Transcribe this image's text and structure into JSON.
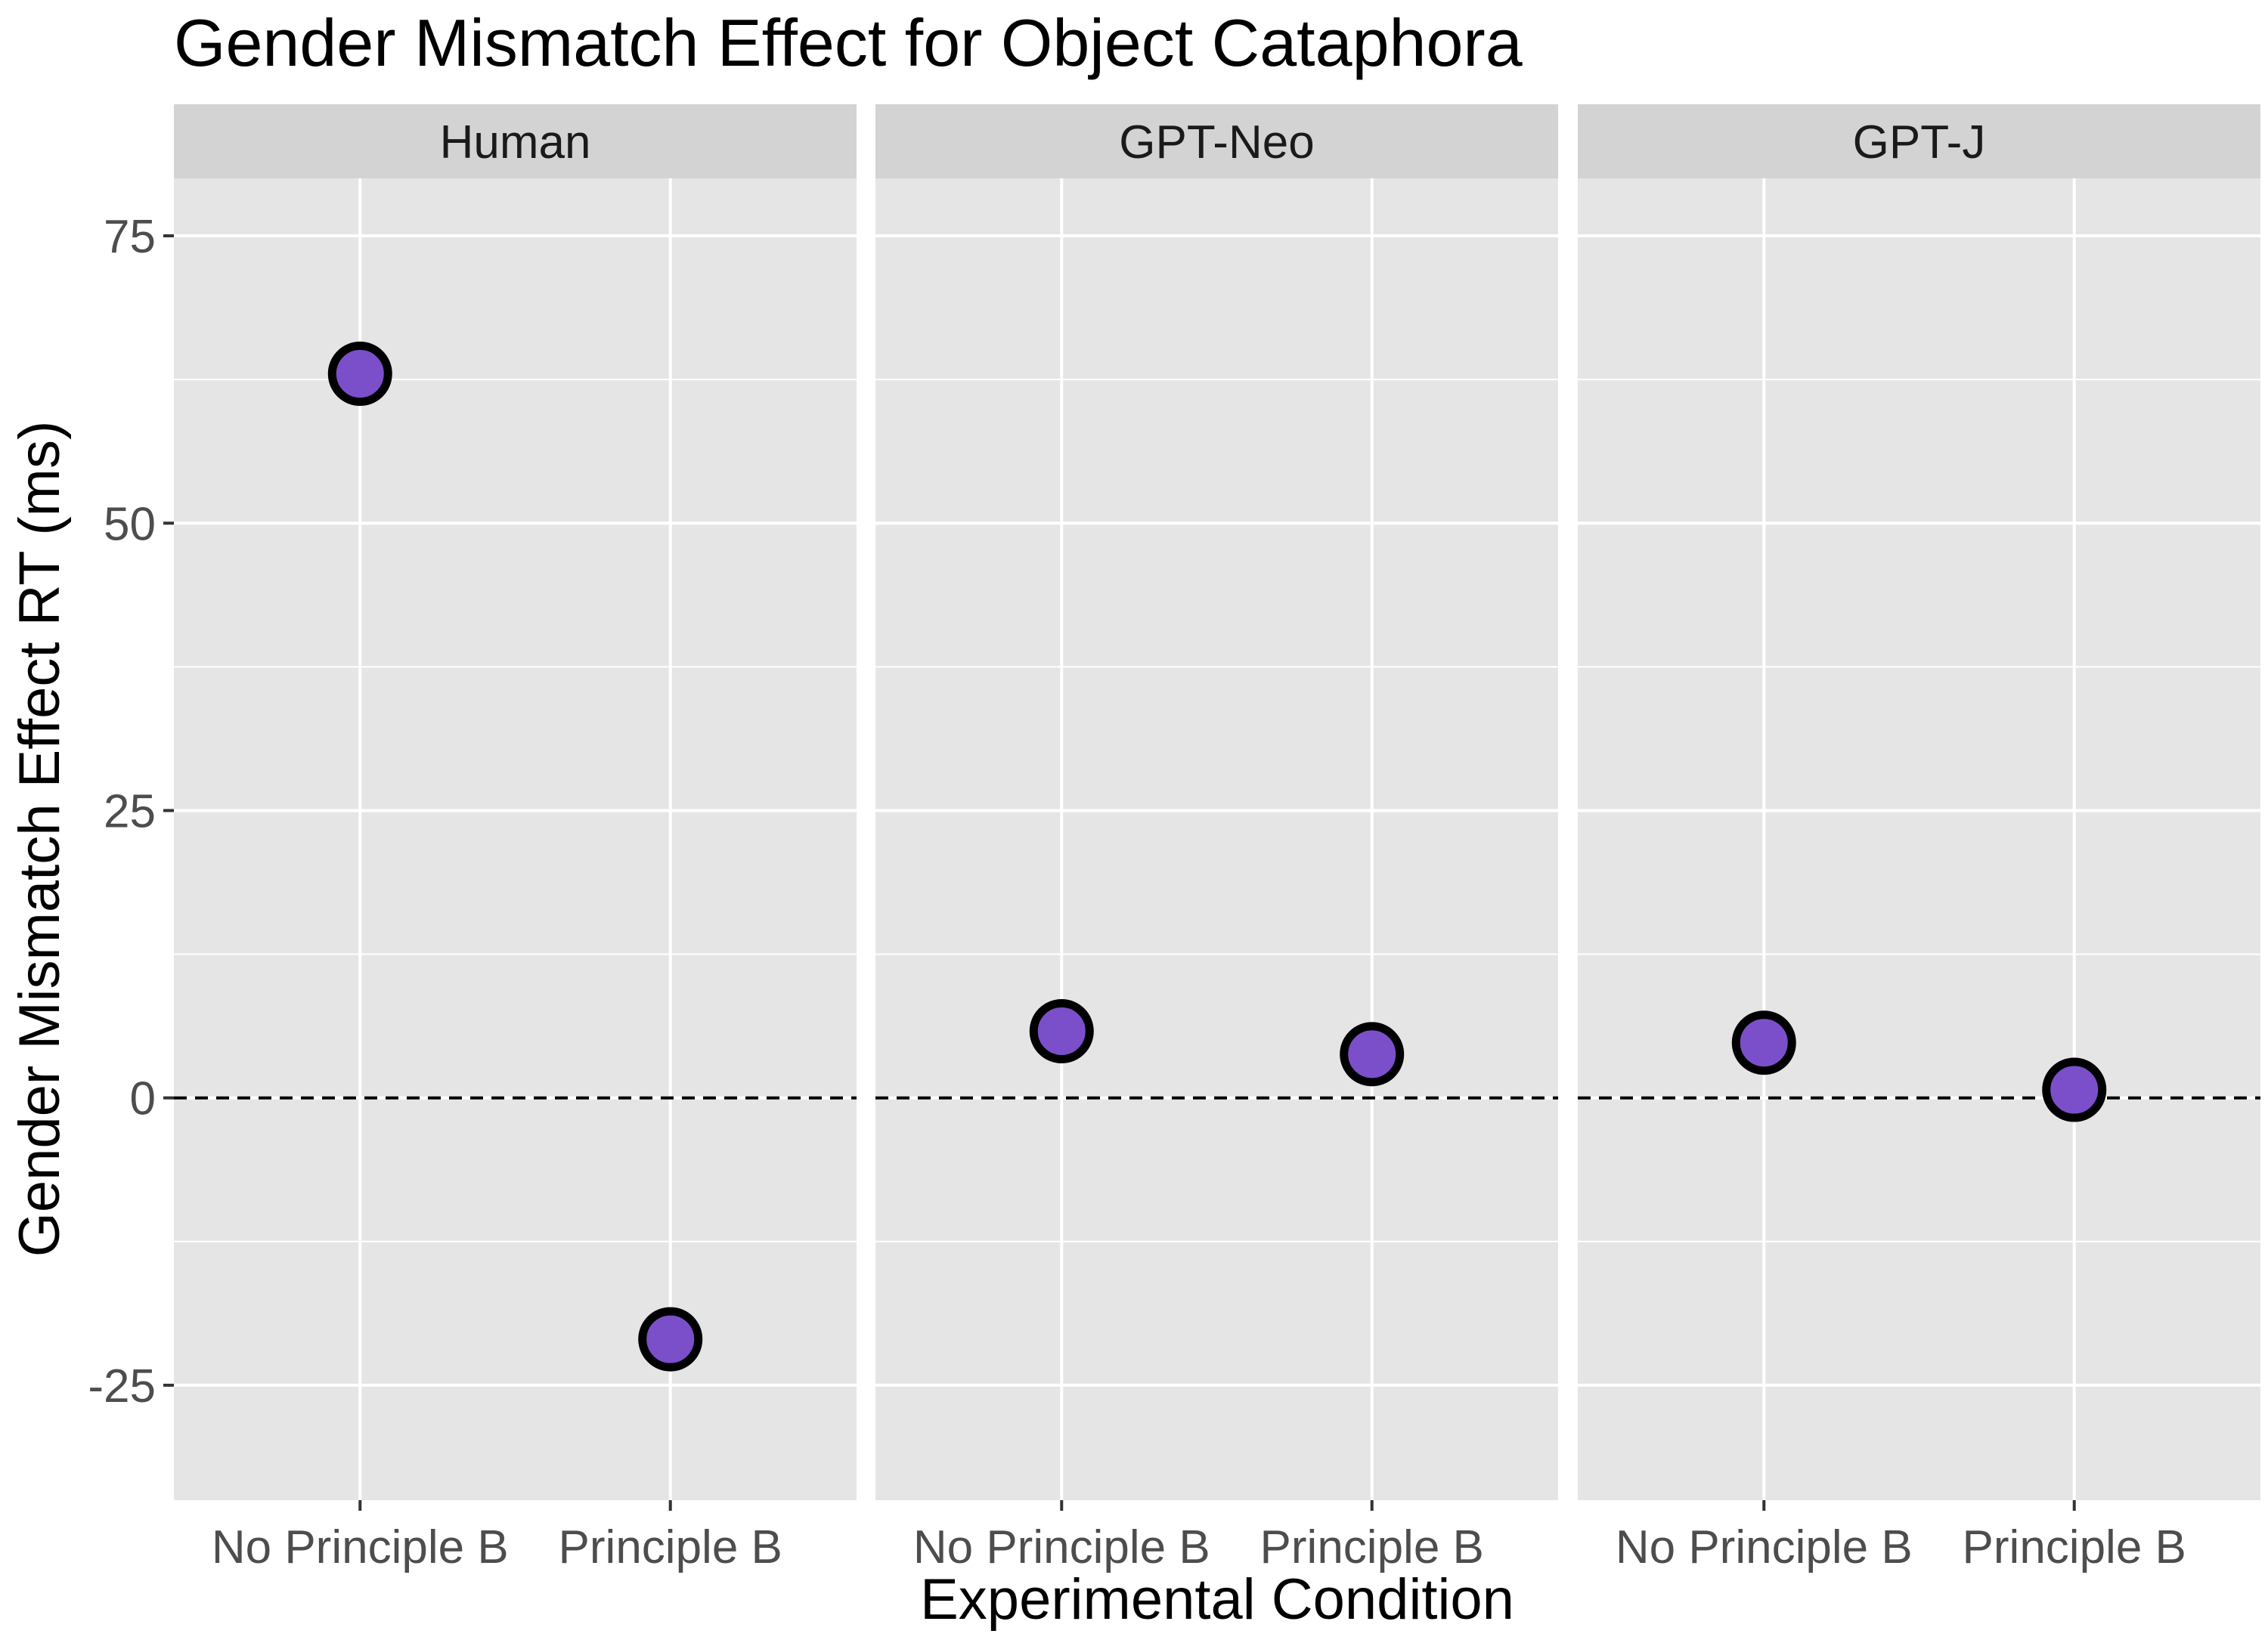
{
  "chart_data": {
    "type": "scatter",
    "title": "Gender Mismatch Effect for Object Cataphora",
    "xlabel": "Experimental Condition",
    "ylabel": "Gender Mismatch Effect RT (ms)",
    "categories": [
      "No Principle B",
      "Principle B"
    ],
    "facets": [
      {
        "name": "Human",
        "values": [
          63,
          -21
        ]
      },
      {
        "name": "GPT-Neo",
        "values": [
          5.8,
          3.8
        ]
      },
      {
        "name": "GPT-J",
        "values": [
          4.8,
          0.7
        ]
      }
    ],
    "ylim": [
      -35,
      80
    ],
    "yticks": [
      -25,
      0,
      25,
      50,
      75
    ],
    "reference_line": 0,
    "grid": true,
    "colors": {
      "point_fill": "#7b4fc9",
      "point_stroke": "#000000",
      "panel_bg": "#e5e5e5",
      "strip_bg": "#d3d3d3",
      "grid": "#ffffff"
    }
  }
}
